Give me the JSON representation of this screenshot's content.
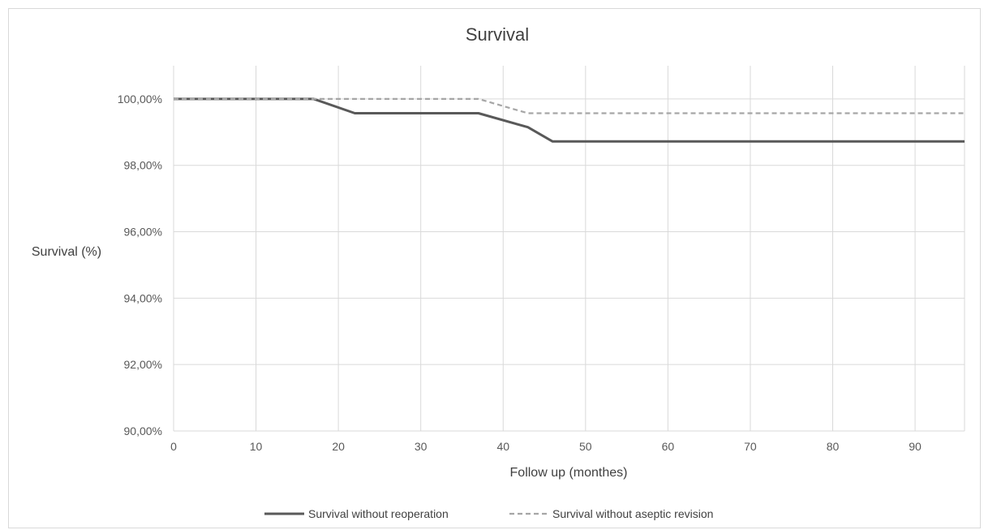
{
  "chart_data": {
    "type": "line",
    "title": "Survival",
    "xlabel": "Follow up (monthes)",
    "ylabel": "Survival (%)",
    "xlim": [
      0,
      96
    ],
    "ylim": [
      90,
      101
    ],
    "x_ticks": [
      0,
      10,
      20,
      30,
      40,
      50,
      60,
      70,
      80,
      90
    ],
    "x_tick_labels": [
      "0",
      "10",
      "20",
      "30",
      "40",
      "50",
      "60",
      "70",
      "80",
      "90"
    ],
    "y_ticks": [
      90,
      92,
      94,
      96,
      98,
      100
    ],
    "y_tick_labels": [
      "90,00%",
      "92,00%",
      "94,00%",
      "96,00%",
      "98,00%",
      "100,00%"
    ],
    "grid": true,
    "legend_position": "bottom",
    "series": [
      {
        "name": "Survival without reoperation",
        "style": "solid",
        "color": "#595959",
        "points": [
          [
            0,
            100
          ],
          [
            17,
            100
          ],
          [
            22,
            99.57
          ],
          [
            37,
            99.57
          ],
          [
            43,
            99.15
          ],
          [
            46,
            98.72
          ],
          [
            96,
            98.72
          ]
        ]
      },
      {
        "name": "Survival without aseptic revision",
        "style": "dashed",
        "color": "#a6a6a6",
        "points": [
          [
            0,
            100
          ],
          [
            37,
            100
          ],
          [
            43,
            99.57
          ],
          [
            96,
            99.57
          ]
        ]
      }
    ]
  }
}
